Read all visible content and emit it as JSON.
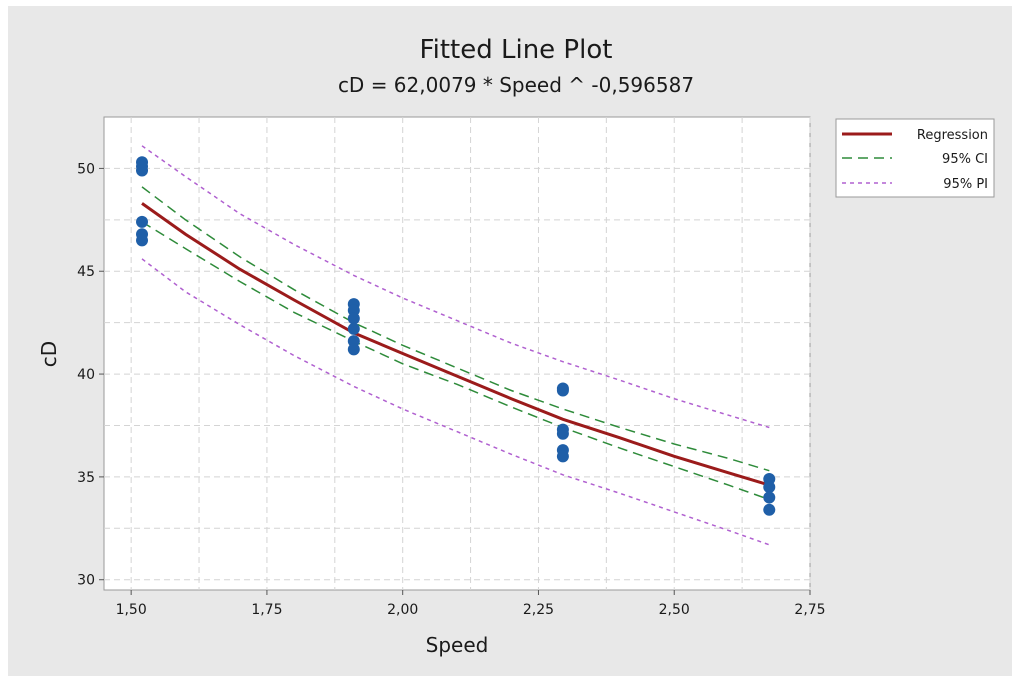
{
  "chart_data": {
    "type": "scatter",
    "title": "Fitted Line Plot",
    "subtitle": "cD = 62,0079 * Speed ^ -0,596587",
    "xlabel": "Speed",
    "ylabel": "cD",
    "xlim": [
      1.45,
      2.75
    ],
    "ylim": [
      29.5,
      52.5
    ],
    "x_ticks": [
      1.5,
      1.75,
      2.0,
      2.25,
      2.5,
      2.75
    ],
    "x_tick_labels": [
      "1,50",
      "1,75",
      "2,00",
      "2,25",
      "2,50",
      "2,75"
    ],
    "y_ticks": [
      30,
      35,
      40,
      45,
      50
    ],
    "y_tick_labels": [
      "30",
      "35",
      "40",
      "45",
      "50"
    ],
    "grid": true,
    "legend_position": "right",
    "model": {
      "coefficient": 62.0079,
      "exponent": -0.596587
    },
    "points": [
      {
        "x": 1.52,
        "y": 50.3
      },
      {
        "x": 1.52,
        "y": 50.1
      },
      {
        "x": 1.52,
        "y": 49.9
      },
      {
        "x": 1.52,
        "y": 47.4
      },
      {
        "x": 1.52,
        "y": 46.8
      },
      {
        "x": 1.52,
        "y": 46.5
      },
      {
        "x": 1.91,
        "y": 43.4
      },
      {
        "x": 1.91,
        "y": 43.1
      },
      {
        "x": 1.91,
        "y": 42.7
      },
      {
        "x": 1.91,
        "y": 42.2
      },
      {
        "x": 1.91,
        "y": 41.6
      },
      {
        "x": 1.91,
        "y": 41.2
      },
      {
        "x": 2.295,
        "y": 39.3
      },
      {
        "x": 2.295,
        "y": 39.2
      },
      {
        "x": 2.295,
        "y": 37.3
      },
      {
        "x": 2.295,
        "y": 37.1
      },
      {
        "x": 2.295,
        "y": 36.3
      },
      {
        "x": 2.295,
        "y": 36.0
      },
      {
        "x": 2.675,
        "y": 34.9
      },
      {
        "x": 2.675,
        "y": 34.5
      },
      {
        "x": 2.675,
        "y": 34.0
      },
      {
        "x": 2.675,
        "y": 33.4
      }
    ],
    "series": [
      {
        "name": "Regression",
        "color": "#9b1b1b",
        "style": "solid",
        "x": [
          1.52,
          1.6,
          1.7,
          1.8,
          1.91,
          2.0,
          2.1,
          2.2,
          2.295,
          2.4,
          2.5,
          2.6,
          2.675
        ],
        "y": [
          48.3,
          46.8,
          45.1,
          43.6,
          42.0,
          41.0,
          39.9,
          38.8,
          37.8,
          36.9,
          36.0,
          35.2,
          34.6
        ]
      },
      {
        "name": "95% CI",
        "color": "#2e8b3a",
        "style": "longdash",
        "x": [
          1.52,
          1.6,
          1.7,
          1.8,
          1.91,
          2.0,
          2.1,
          2.2,
          2.295,
          2.4,
          2.5,
          2.6,
          2.675
        ],
        "upper": [
          49.1,
          47.5,
          45.7,
          44.1,
          42.5,
          41.4,
          40.3,
          39.2,
          38.3,
          37.4,
          36.6,
          35.9,
          35.3
        ],
        "lower": [
          47.4,
          46.1,
          44.5,
          43.0,
          41.6,
          40.5,
          39.5,
          38.4,
          37.4,
          36.4,
          35.5,
          34.6,
          33.9
        ]
      },
      {
        "name": "95% PI",
        "color": "#b060d0",
        "style": "shortdash",
        "x": [
          1.52,
          1.6,
          1.7,
          1.8,
          1.91,
          2.0,
          2.1,
          2.2,
          2.295,
          2.4,
          2.5,
          2.6,
          2.675
        ],
        "upper": [
          51.1,
          49.6,
          47.8,
          46.3,
          44.8,
          43.7,
          42.6,
          41.5,
          40.6,
          39.7,
          38.8,
          38.0,
          37.4
        ],
        "lower": [
          45.6,
          44.0,
          42.4,
          40.9,
          39.4,
          38.3,
          37.2,
          36.1,
          35.1,
          34.2,
          33.3,
          32.4,
          31.7
        ]
      }
    ],
    "point_color": "#1f5fa8"
  }
}
